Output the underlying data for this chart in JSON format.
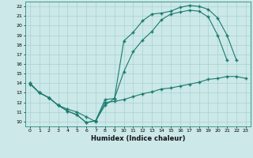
{
  "xlabel": "Humidex (Indice chaleur)",
  "xlim": [
    -0.5,
    23.5
  ],
  "ylim": [
    9.5,
    22.5
  ],
  "xticks": [
    0,
    1,
    2,
    3,
    4,
    5,
    6,
    7,
    8,
    9,
    10,
    11,
    12,
    13,
    14,
    15,
    16,
    17,
    18,
    19,
    20,
    21,
    22,
    23
  ],
  "yticks": [
    10,
    11,
    12,
    13,
    14,
    15,
    16,
    17,
    18,
    19,
    20,
    21,
    22
  ],
  "line_color": "#1a7a6e",
  "bg_color": "#cce8e8",
  "line1_x": [
    0,
    1,
    2,
    3,
    4,
    5,
    6,
    7,
    8,
    9,
    10,
    11,
    12,
    13,
    14,
    15,
    16,
    17,
    18,
    19,
    20,
    21,
    22
  ],
  "line1_y": [
    14.0,
    13.0,
    12.5,
    11.7,
    11.1,
    10.7,
    9.9,
    10.1,
    11.7,
    12.4,
    18.4,
    19.3,
    20.5,
    21.2,
    21.3,
    21.5,
    21.9,
    22.1,
    22.0,
    21.7,
    20.8,
    19.0,
    16.4
  ],
  "line2_x": [
    0,
    1,
    2,
    3,
    4,
    5,
    6,
    7,
    8,
    9,
    10,
    11,
    12,
    13,
    14,
    15,
    16,
    17,
    18,
    19,
    20,
    21,
    22
  ],
  "line2_y": [
    14.0,
    13.0,
    12.5,
    11.7,
    11.1,
    10.7,
    9.9,
    10.1,
    12.3,
    12.4,
    15.2,
    17.3,
    18.5,
    19.4,
    20.6,
    21.2,
    21.4,
    21.6,
    21.5,
    20.9,
    19.0,
    16.4,
    null
  ],
  "line3_x": [
    0,
    1,
    2,
    3,
    4,
    5,
    6,
    7,
    8,
    9,
    10,
    11,
    12,
    13,
    14,
    15,
    16,
    17,
    18,
    19,
    20,
    21,
    22,
    23
  ],
  "line3_y": [
    13.9,
    13.0,
    12.5,
    11.7,
    11.3,
    11.0,
    10.5,
    10.0,
    12.0,
    12.1,
    12.3,
    12.6,
    12.9,
    13.1,
    13.4,
    13.5,
    13.7,
    13.9,
    14.1,
    14.4,
    14.5,
    14.7,
    14.7,
    14.5
  ]
}
